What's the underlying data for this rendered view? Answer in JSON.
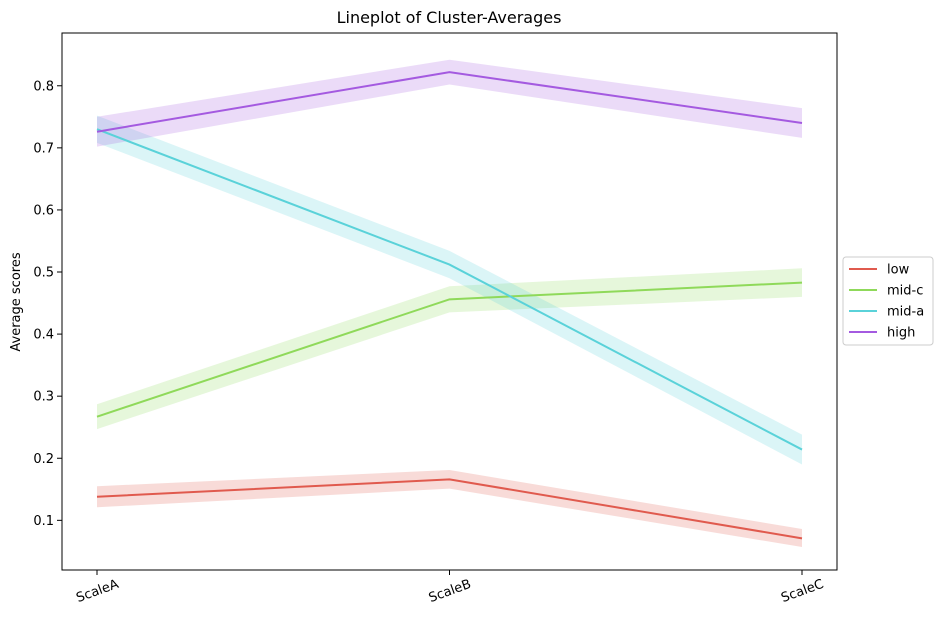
{
  "chart_data": {
    "type": "line",
    "title": "Lineplot of Cluster-Averages",
    "xlabel": "",
    "ylabel": "Average scores",
    "categories": [
      "ScaleA",
      "ScaleB",
      "ScaleC"
    ],
    "ylim": [
      0.02,
      0.885
    ],
    "yticks": [
      0.1,
      0.2,
      0.3,
      0.4,
      0.5,
      0.6,
      0.7,
      0.8
    ],
    "ytick_labels": [
      "0.1",
      "0.2",
      "0.3",
      "0.4",
      "0.5",
      "0.6",
      "0.7",
      "0.8"
    ],
    "grid": false,
    "legend_position": "center-right outside",
    "confidence_bands": true,
    "series": [
      {
        "name": "low",
        "color": "#e05a4e",
        "values": [
          0.138,
          0.166,
          0.071
        ],
        "lower": [
          0.121,
          0.151,
          0.057
        ],
        "upper": [
          0.155,
          0.181,
          0.086
        ]
      },
      {
        "name": "mid-c",
        "color": "#8fd95a",
        "values": [
          0.267,
          0.456,
          0.483
        ],
        "lower": [
          0.247,
          0.435,
          0.46
        ],
        "upper": [
          0.287,
          0.477,
          0.506
        ]
      },
      {
        "name": "mid-a",
        "color": "#5ad2d9",
        "values": [
          0.73,
          0.512,
          0.214
        ],
        "lower": [
          0.708,
          0.49,
          0.19
        ],
        "upper": [
          0.752,
          0.534,
          0.238
        ]
      },
      {
        "name": "high",
        "color": "#a45ae0",
        "values": [
          0.726,
          0.822,
          0.74
        ],
        "lower": [
          0.702,
          0.802,
          0.716
        ],
        "upper": [
          0.75,
          0.842,
          0.764
        ]
      }
    ]
  }
}
